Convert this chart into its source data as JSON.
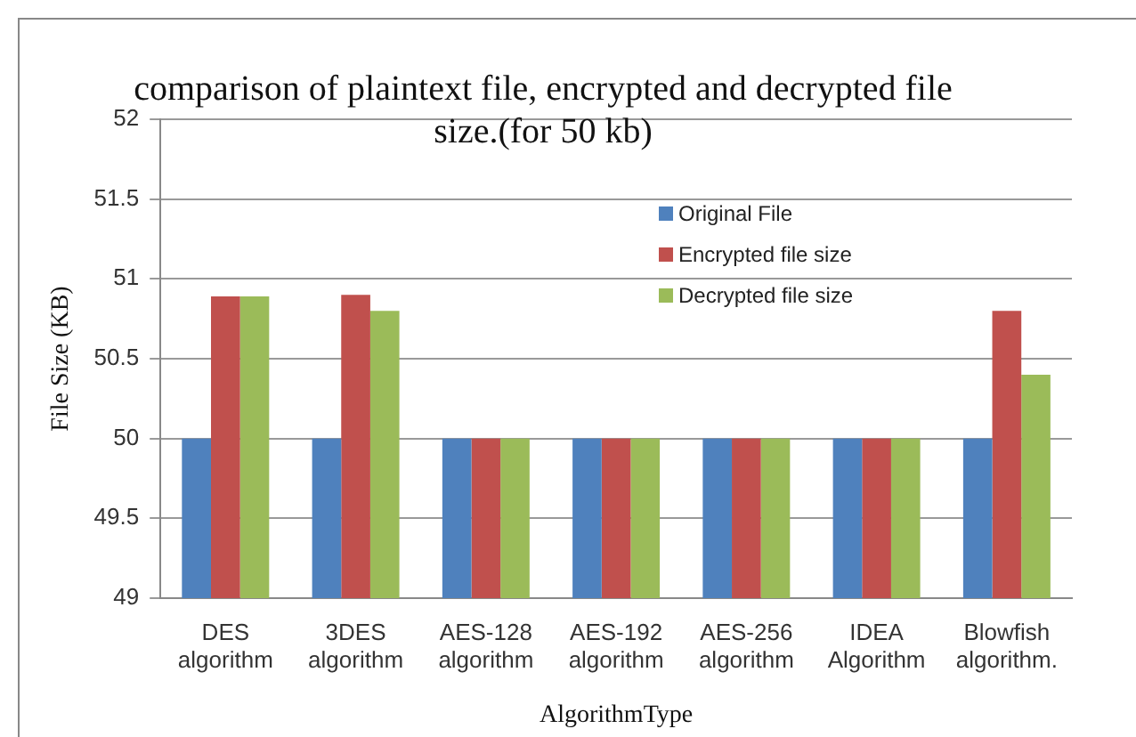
{
  "chart_data": {
    "type": "bar",
    "title": "comparison of plaintext file, encrypted and decrypted file size.(for 50 kb)",
    "xlabel": "AlgorithmType",
    "ylabel": "File Size (KB)",
    "categories": [
      "DES algorithm",
      "3DES algorithm",
      "AES-128 algorithm",
      "AES-192 algorithm",
      "AES-256 algorithm",
      "IDEA Algorithm",
      "Blowfish algorithm."
    ],
    "series": [
      {
        "name": "Original File",
        "color": "#4f81bd",
        "values": [
          50,
          50,
          50,
          50,
          50,
          50,
          50
        ]
      },
      {
        "name": "Encrypted file size",
        "color": "#c0504d",
        "values": [
          50.89,
          50.9,
          50,
          50,
          50,
          50,
          50.8
        ]
      },
      {
        "name": "Decrypted file size",
        "color": "#9bbb59",
        "values": [
          50.89,
          50.8,
          50,
          50,
          50,
          50,
          50.4
        ]
      }
    ],
    "ylim": [
      49,
      52
    ],
    "yticks": [
      49,
      49.5,
      50,
      50.5,
      51,
      51.5,
      52
    ],
    "grid": "y",
    "legend": "top right"
  }
}
